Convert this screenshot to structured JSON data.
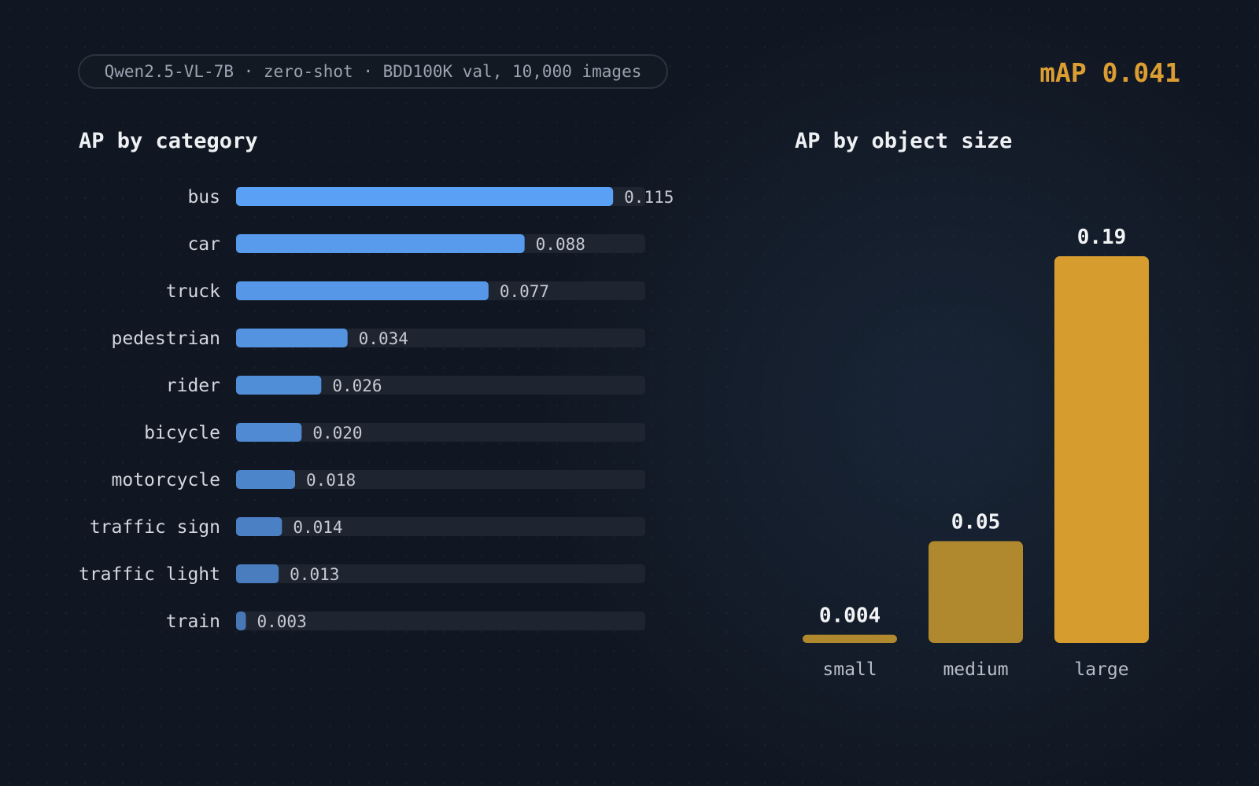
{
  "header": {
    "subtitle": "Qwen2.5-VL-7B · zero-shot · BDD100K val, 10,000 images",
    "map_label": "mAP 0.041"
  },
  "colors": {
    "blue_bar": "#5aa0f5",
    "track": "#1f2530",
    "gold_bar": "#d69c2e",
    "gold_dim": "#b0882e"
  },
  "chart_data": [
    {
      "type": "bar",
      "orientation": "horizontal",
      "title": "AP by category",
      "categories": [
        "bus",
        "car",
        "truck",
        "pedestrian",
        "rider",
        "bicycle",
        "motorcycle",
        "traffic sign",
        "traffic light",
        "train"
      ],
      "values": [
        0.115,
        0.088,
        0.077,
        0.034,
        0.026,
        0.02,
        0.018,
        0.014,
        0.013,
        0.003
      ],
      "value_labels": [
        "0.115",
        "0.088",
        "0.077",
        "0.034",
        "0.026",
        "0.020",
        "0.018",
        "0.014",
        "0.013",
        "0.003"
      ],
      "xlim": [
        0,
        0.12
      ]
    },
    {
      "type": "bar",
      "orientation": "vertical",
      "title": "AP by object size",
      "categories": [
        "small",
        "medium",
        "large"
      ],
      "values": [
        0.004,
        0.05,
        0.19
      ],
      "value_labels": [
        "0.004",
        "0.05",
        "0.19"
      ],
      "ylim": [
        0,
        0.19
      ]
    }
  ]
}
